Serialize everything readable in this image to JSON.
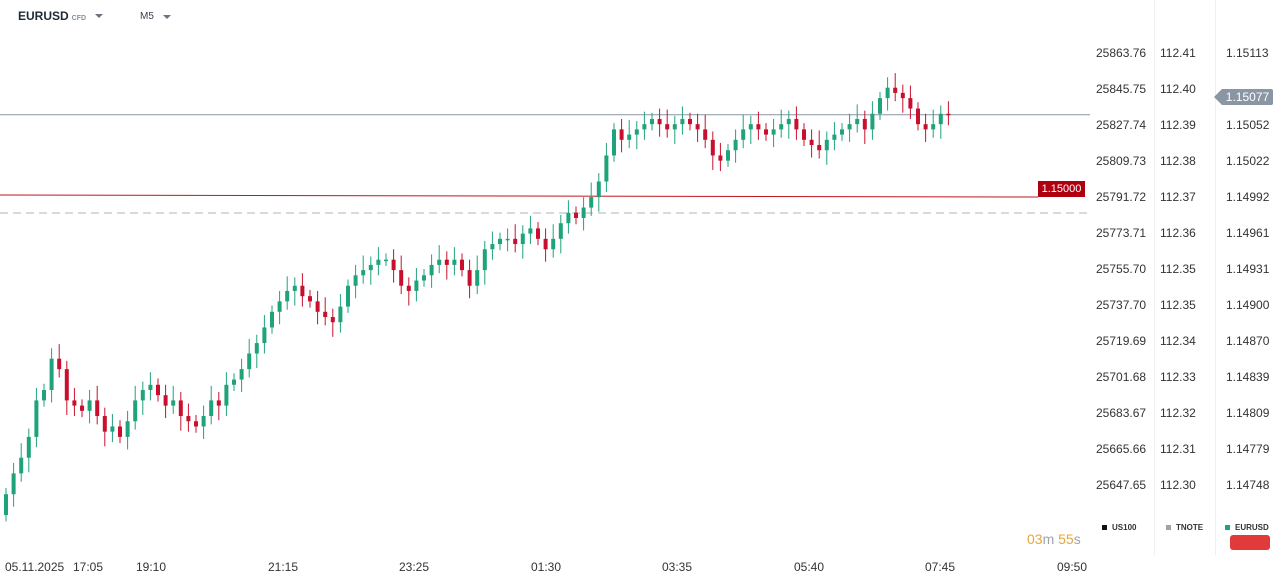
{
  "toolbar": {
    "symbol": "EURUSD",
    "symbol_type": "CFD",
    "timeframe": "M5"
  },
  "axes": {
    "us100": [
      "25863.76",
      "25845.75",
      "25827.74",
      "25809.73",
      "25791.72",
      "25773.71",
      "25755.70",
      "25737.70",
      "25719.69",
      "25701.68",
      "25683.67",
      "25665.66",
      "25647.65"
    ],
    "tnote": [
      "112.41",
      "112.40",
      "112.39",
      "112.38",
      "112.37",
      "112.36",
      "112.35",
      "112.35",
      "112.34",
      "112.33",
      "112.32",
      "112.31",
      "112.30"
    ],
    "eurusd": [
      "1.15113",
      "",
      "1.15052",
      "1.15022",
      "1.14992",
      "1.14961",
      "1.14931",
      "1.14900",
      "1.14870",
      "1.14839",
      "1.14809",
      "1.14779",
      "1.14748"
    ]
  },
  "current_price": "1.15077",
  "alert_price": "1.15000",
  "countdown": {
    "minutes": "03",
    "minutes_unit": "m",
    "seconds": "55",
    "seconds_unit": "s"
  },
  "legend": [
    {
      "label": "US100",
      "color": "#111111"
    },
    {
      "label": "TNOTE",
      "color": "#9ca3af"
    },
    {
      "label": "EURUSD",
      "color": "#1fa37a"
    }
  ],
  "time_axis": [
    "05.11.2025",
    "17:05",
    "19:10",
    "21:15",
    "23:25",
    "01:30",
    "03:35",
    "05:40",
    "07:45",
    "09:50"
  ],
  "colors": {
    "bull": "#1fa37a",
    "bear": "#c8102e",
    "alert_line": "#c0161f",
    "price_line": "#8a96a3"
  },
  "chart_data": {
    "type": "candlestick",
    "symbol": "EURUSD",
    "timeframe": "M5",
    "ylim": [
      1.14718,
      1.15143
    ],
    "current_price": 1.15077,
    "alert_level": 1.15,
    "ohlc_close_path": [
      1.14713,
      1.14733,
      1.14748,
      1.14768,
      1.14803,
      1.14813,
      1.14843,
      1.14833,
      1.14803,
      1.14798,
      1.14793,
      1.14803,
      1.14788,
      1.14773,
      1.14778,
      1.14768,
      1.14783,
      1.14803,
      1.14813,
      1.14818,
      1.14808,
      1.14798,
      1.14803,
      1.14788,
      1.14783,
      1.14778,
      1.14788,
      1.14803,
      1.14798,
      1.14818,
      1.14823,
      1.14833,
      1.14848,
      1.14858,
      1.14873,
      1.14888,
      1.14898,
      1.14908,
      1.14913,
      1.14903,
      1.14898,
      1.14888,
      1.14883,
      1.14878,
      1.14893,
      1.14913,
      1.14923,
      1.14928,
      1.14933,
      1.14938,
      1.14938,
      1.14928,
      1.14913,
      1.14908,
      1.14918,
      1.14923,
      1.14933,
      1.14938,
      1.14933,
      1.14938,
      1.14928,
      1.14913,
      1.14928,
      1.14948,
      1.14953,
      1.14958,
      1.14958,
      1.14953,
      1.14963,
      1.14968,
      1.14958,
      1.14948,
      1.14958,
      1.14973,
      1.14983,
      1.14978,
      1.14988,
      1.14998,
      1.15013,
      1.15038,
      1.15063,
      1.15053,
      1.15058,
      1.15063,
      1.15068,
      1.15073,
      1.15068,
      1.15063,
      1.15068,
      1.15073,
      1.15068,
      1.15063,
      1.15053,
      1.15038,
      1.15033,
      1.15043,
      1.15053,
      1.15063,
      1.15068,
      1.15063,
      1.15058,
      1.15063,
      1.15068,
      1.15073,
      1.15063,
      1.15053,
      1.15048,
      1.15043,
      1.15053,
      1.15058,
      1.15063,
      1.15068,
      1.15073,
      1.15063,
      1.15078,
      1.15093,
      1.15103,
      1.15098,
      1.15093,
      1.15083,
      1.15068,
      1.15063,
      1.15068,
      1.15078,
      1.15077
    ]
  }
}
